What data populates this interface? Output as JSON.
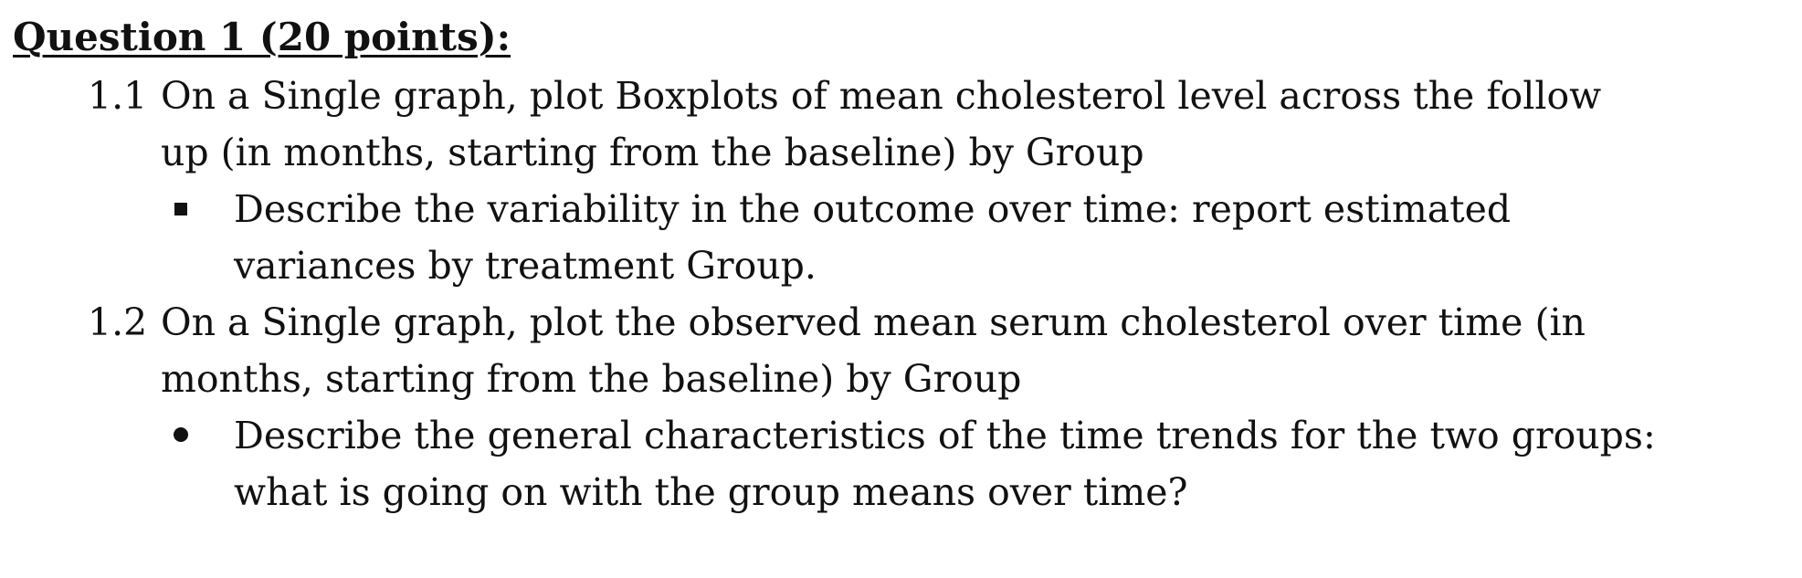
{
  "question": {
    "title": "Question 1 (20 points):"
  },
  "items": [
    {
      "number": "1.1",
      "lines": [
        "On a Single graph, plot Boxplots of mean cholesterol level across the follow",
        "up (in months, starting from the baseline) by Group"
      ],
      "bullet": {
        "icon": "square-bullet-icon",
        "lines": [
          "Describe the variability in the outcome over time: report estimated",
          "variances by treatment Group."
        ]
      }
    },
    {
      "number": "1.2",
      "lines": [
        "On a Single graph, plot the observed mean serum cholesterol over time (in",
        "months, starting from the baseline) by Group"
      ],
      "bullet": {
        "icon": "round-bullet-icon",
        "lines": [
          "Describe the general characteristics of the time trends for the two groups:",
          "what is going on with the group means over time?"
        ]
      }
    }
  ]
}
